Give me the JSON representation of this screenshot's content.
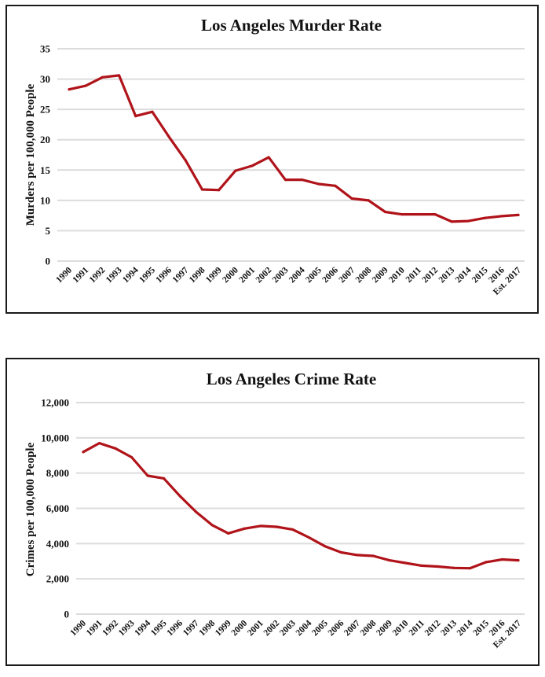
{
  "chart_data": [
    {
      "type": "line",
      "title": "Los Angeles Murder Rate",
      "xlabel": "",
      "ylabel": "Murders per 100,000 People",
      "ylim": [
        0,
        35
      ],
      "yticks": [
        0,
        5,
        10,
        15,
        20,
        25,
        30,
        35
      ],
      "ytick_labels": [
        "0",
        "5",
        "10",
        "15",
        "20",
        "25",
        "30",
        "35"
      ],
      "grid": true,
      "legend": "none",
      "color": "#B0141A",
      "categories": [
        "1990",
        "1991",
        "1992",
        "1993",
        "1994",
        "1995",
        "1996",
        "1997",
        "1998",
        "1999",
        "2000",
        "2001",
        "2002",
        "2003",
        "2004",
        "2005",
        "2006",
        "2007",
        "2008",
        "2009",
        "2010",
        "2011",
        "2012",
        "2013",
        "2014",
        "2015",
        "2016",
        "Est. 2017"
      ],
      "series": [
        {
          "name": "Murder Rate",
          "values": [
            28.3,
            28.9,
            30.3,
            30.6,
            23.9,
            24.6,
            20.5,
            16.6,
            11.8,
            11.7,
            14.9,
            15.7,
            17.1,
            13.4,
            13.4,
            12.7,
            12.4,
            10.3,
            10.0,
            8.1,
            7.7,
            7.7,
            7.7,
            6.5,
            6.6,
            7.1,
            7.4,
            7.6
          ]
        }
      ]
    },
    {
      "type": "line",
      "title": "Los Angeles Crime Rate",
      "xlabel": "",
      "ylabel": "Crimes per 100,000 People",
      "ylim": [
        0,
        12000
      ],
      "yticks": [
        0,
        2000,
        4000,
        6000,
        8000,
        10000,
        12000
      ],
      "ytick_labels": [
        "0",
        "2,000",
        "4,000",
        "6,000",
        "8,000",
        "10,000",
        "12,000"
      ],
      "grid": true,
      "legend": "none",
      "color": "#B0141A",
      "categories": [
        "1990",
        "1991",
        "1992",
        "1993",
        "1994",
        "1995",
        "1996",
        "1997",
        "1998",
        "1999",
        "2000",
        "2001",
        "2002",
        "2003",
        "2004",
        "2005",
        "2006",
        "2007",
        "2008",
        "2009",
        "2010",
        "2011",
        "2012",
        "2013",
        "2014",
        "2015",
        "2016",
        "Est. 2017"
      ],
      "series": [
        {
          "name": "Crime Rate",
          "values": [
            9200,
            9700,
            9400,
            8900,
            7850,
            7700,
            6700,
            5800,
            5050,
            4580,
            4850,
            5000,
            4950,
            4800,
            4350,
            3850,
            3500,
            3350,
            3300,
            3050,
            2900,
            2750,
            2700,
            2620,
            2600,
            2950,
            3100,
            3050
          ]
        }
      ]
    }
  ]
}
